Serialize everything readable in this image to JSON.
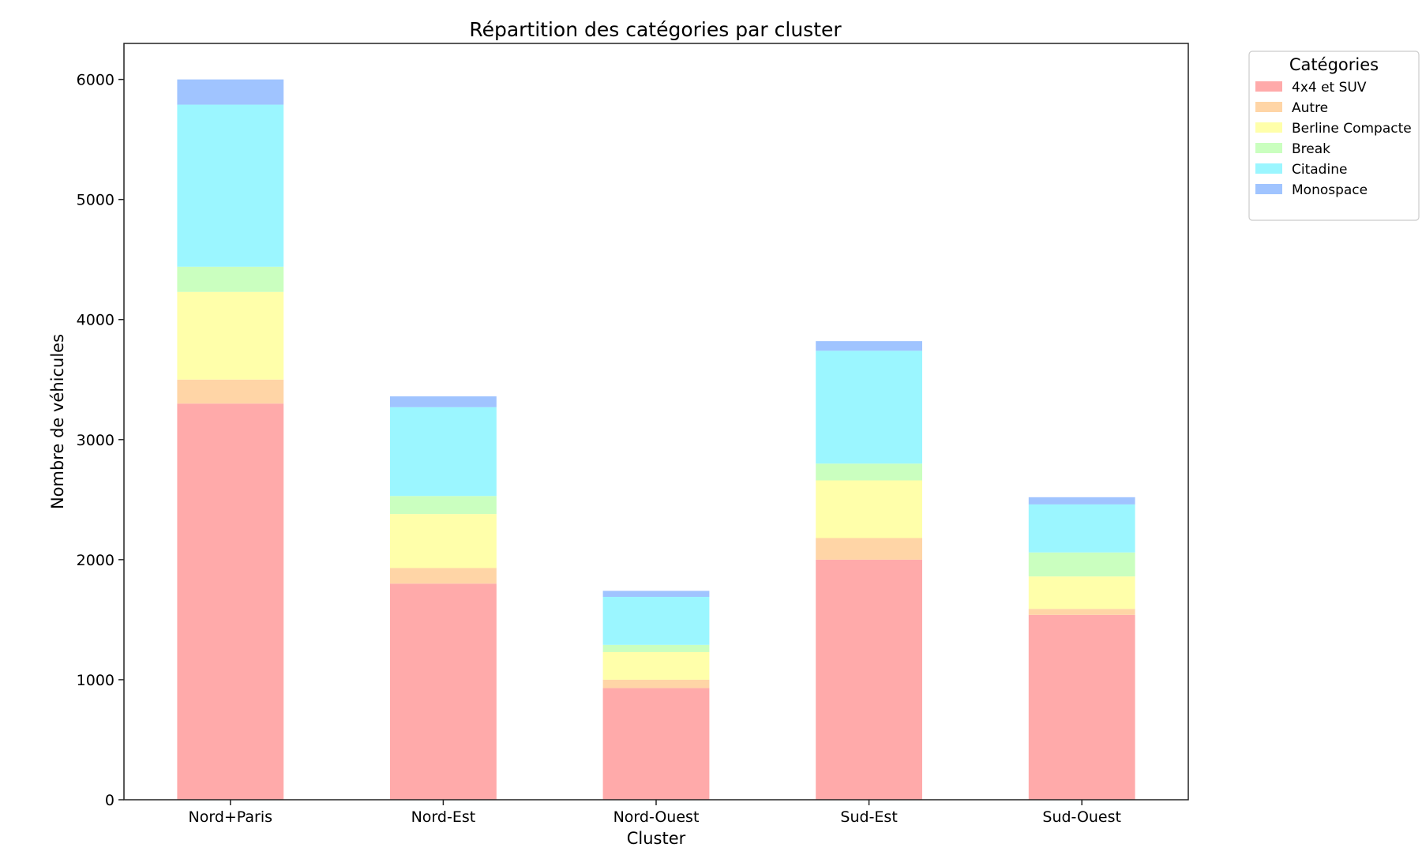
{
  "chart_data": {
    "type": "bar",
    "stacked": true,
    "title": "Répartition des catégories par cluster",
    "xlabel": "Cluster",
    "ylabel": "Nombre de véhicules",
    "ylim": [
      0,
      6300
    ],
    "yticks": [
      0,
      1000,
      2000,
      3000,
      4000,
      5000,
      6000
    ],
    "grid": false,
    "legend": {
      "title": "Catégories",
      "position": "outside-top-right"
    },
    "categories": [
      "Nord+Paris",
      "Nord-Est",
      "Nord-Ouest",
      "Sud-Est",
      "Sud-Ouest"
    ],
    "series": [
      {
        "name": "4x4 et SUV",
        "color": "#ffaaaa",
        "values": [
          3300,
          1800,
          930,
          2000,
          1540
        ]
      },
      {
        "name": "Autre",
        "color": "#ffd5a6",
        "values": [
          200,
          130,
          70,
          180,
          50
        ]
      },
      {
        "name": "Berline Compacte",
        "color": "#ffffaa",
        "values": [
          730,
          450,
          230,
          480,
          270
        ]
      },
      {
        "name": "Break",
        "color": "#caffbf",
        "values": [
          210,
          150,
          60,
          140,
          200
        ]
      },
      {
        "name": "Citadine",
        "color": "#9bf6ff",
        "values": [
          1350,
          740,
          400,
          940,
          400
        ]
      },
      {
        "name": "Monospace",
        "color": "#a0c4ff",
        "values": [
          210,
          90,
          50,
          80,
          60
        ]
      }
    ]
  }
}
